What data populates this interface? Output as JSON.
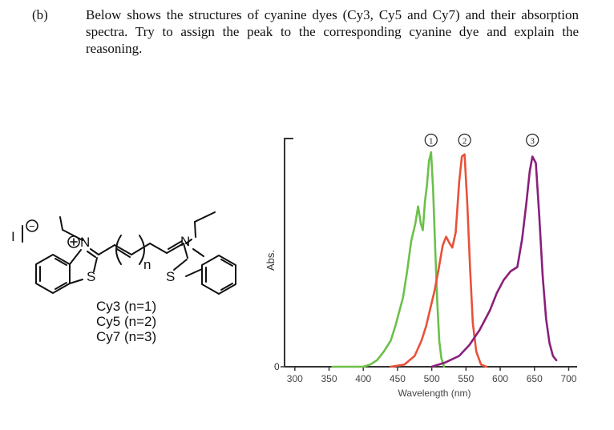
{
  "question": {
    "label": "(b)",
    "text": "Below shows the structures of cyanine dyes (Cy3, Cy5 and Cy7) and their absorption spectra. Try to assign the peak to the corresponding cyanine dye and explain the reasoning."
  },
  "structure": {
    "labels": {
      "iodide": "I",
      "charge": "−",
      "n_plus": "N",
      "n_right": "N",
      "s_left": "S",
      "s_right": "S",
      "subscript": "n"
    },
    "dyes": [
      "Cy3 (n=1)",
      "Cy5 (n=2)",
      "Cy7 (n=3)"
    ]
  },
  "colors": {
    "green": "#6cc04a",
    "red": "#e8513a",
    "purple": "#8a1f7a",
    "axis": "#333333"
  },
  "chart_data": {
    "type": "line",
    "xlabel": "Wavelength (nm)",
    "ylabel": "Abs.",
    "x_ticks": [
      300,
      350,
      400,
      450,
      500,
      550,
      600,
      650,
      700
    ],
    "y_ticks": [
      "0"
    ],
    "xlim": [
      285,
      710
    ],
    "ylim": [
      0,
      1.02
    ],
    "peak_markers": [
      "①",
      "②",
      "③"
    ],
    "series": [
      {
        "name": "①",
        "color": "#6cc04a",
        "x": [
          355,
          380,
          400,
          410,
          420,
          430,
          440,
          447,
          453,
          458,
          464,
          470,
          476,
          480,
          484,
          487,
          490,
          493,
          496,
          499,
          502,
          505,
          508,
          511,
          514,
          518
        ],
        "y": [
          0.0,
          0.0,
          0.0,
          0.01,
          0.03,
          0.07,
          0.12,
          0.19,
          0.26,
          0.32,
          0.44,
          0.58,
          0.66,
          0.74,
          0.66,
          0.63,
          0.76,
          0.84,
          0.95,
          0.99,
          0.82,
          0.55,
          0.3,
          0.12,
          0.04,
          0.0
        ]
      },
      {
        "name": "②",
        "color": "#e8513a",
        "x": [
          440,
          460,
          475,
          485,
          492,
          498,
          504,
          510,
          516,
          521,
          526,
          530,
          535,
          540,
          544,
          548,
          552,
          556,
          560,
          565,
          572,
          580
        ],
        "y": [
          0.0,
          0.01,
          0.05,
          0.12,
          0.19,
          0.27,
          0.35,
          0.45,
          0.56,
          0.6,
          0.57,
          0.55,
          0.62,
          0.85,
          0.97,
          0.98,
          0.75,
          0.45,
          0.2,
          0.07,
          0.01,
          0.0
        ]
      },
      {
        "name": "③",
        "color": "#8a1f7a",
        "x": [
          500,
          520,
          540,
          555,
          570,
          585,
          595,
          605,
          615,
          625,
          632,
          638,
          643,
          647,
          652,
          657,
          662,
          667,
          672,
          677,
          682
        ],
        "y": [
          0.0,
          0.02,
          0.05,
          0.1,
          0.17,
          0.26,
          0.34,
          0.4,
          0.44,
          0.46,
          0.59,
          0.75,
          0.9,
          0.97,
          0.94,
          0.7,
          0.42,
          0.22,
          0.11,
          0.05,
          0.03
        ]
      }
    ]
  }
}
